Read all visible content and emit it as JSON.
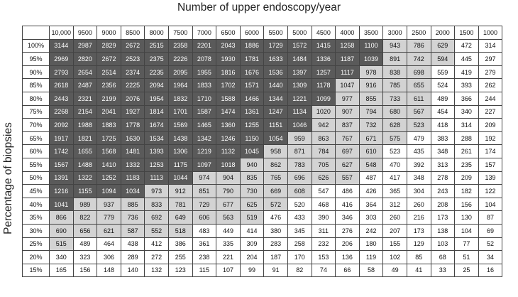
{
  "header": {
    "title": "Number of upper endoscopy/year"
  },
  "side": {
    "label": "Percentage of biopsies"
  },
  "shading": {
    "dark": "#5a5a5a",
    "light": "#d3d3d3",
    "none": "#ffffff"
  },
  "columns": [
    "10,000",
    "9500",
    "9000",
    "8500",
    "8000",
    "7500",
    "7000",
    "6500",
    "6000",
    "5500",
    "5000",
    "4500",
    "4000",
    "3500",
    "3000",
    "2500",
    "2000",
    "1500",
    "1000"
  ],
  "rows": [
    {
      "label": "100%",
      "values": [
        "3144",
        "2987",
        "2829",
        "2672",
        "2515",
        "2358",
        "2201",
        "2043",
        "1886",
        "1729",
        "1572",
        "1415",
        "1258",
        "1100",
        "943",
        "786",
        "629",
        "472",
        "314"
      ],
      "dark": 14,
      "light": 17
    },
    {
      "label": "95%",
      "values": [
        "2969",
        "2820",
        "2672",
        "2523",
        "2375",
        "2226",
        "2078",
        "1930",
        "1781",
        "1633",
        "1484",
        "1336",
        "1187",
        "1039",
        "891",
        "742",
        "594",
        "445",
        "297"
      ],
      "dark": 14,
      "light": 17
    },
    {
      "label": "90%",
      "values": [
        "2793",
        "2654",
        "2514",
        "2374",
        "2235",
        "2095",
        "1955",
        "1816",
        "1676",
        "1536",
        "1397",
        "1257",
        "1117",
        "978",
        "838",
        "698",
        "559",
        "419",
        "279"
      ],
      "dark": 13,
      "light": 16
    },
    {
      "label": "85%",
      "values": [
        "2618",
        "2487",
        "2356",
        "2225",
        "2094",
        "1964",
        "1833",
        "1702",
        "1571",
        "1440",
        "1309",
        "1178",
        "1047",
        "916",
        "785",
        "655",
        "524",
        "393",
        "262"
      ],
      "dark": 12,
      "light": 16
    },
    {
      "label": "80%",
      "values": [
        "2443",
        "2321",
        "2199",
        "2076",
        "1954",
        "1832",
        "1710",
        "1588",
        "1466",
        "1344",
        "1221",
        "1099",
        "977",
        "855",
        "733",
        "611",
        "489",
        "366",
        "244"
      ],
      "dark": 12,
      "light": 16
    },
    {
      "label": "75%",
      "values": [
        "2268",
        "2154",
        "2041",
        "1927",
        "1814",
        "1701",
        "1587",
        "1474",
        "1361",
        "1247",
        "1134",
        "1020",
        "907",
        "794",
        "680",
        "567",
        "454",
        "340",
        "227"
      ],
      "dark": 11,
      "light": 16
    },
    {
      "label": "70%",
      "values": [
        "2092",
        "1988",
        "1883",
        "1778",
        "1674",
        "1569",
        "1465",
        "1360",
        "1255",
        "1151",
        "1046",
        "942",
        "837",
        "732",
        "628",
        "523",
        "418",
        "314",
        "209"
      ],
      "dark": 11,
      "light": 16
    },
    {
      "label": "65%",
      "values": [
        "1917",
        "1821",
        "1725",
        "1630",
        "1534",
        "1438",
        "1342",
        "1246",
        "1150",
        "1054",
        "959",
        "863",
        "767",
        "671",
        "575",
        "479",
        "383",
        "288",
        "192"
      ],
      "dark": 10,
      "light": 15
    },
    {
      "label": "60%",
      "values": [
        "1742",
        "1655",
        "1568",
        "1481",
        "1393",
        "1306",
        "1219",
        "1132",
        "1045",
        "958",
        "871",
        "784",
        "697",
        "610",
        "523",
        "435",
        "348",
        "261",
        "174"
      ],
      "dark": 9,
      "light": 14
    },
    {
      "label": "55%",
      "values": [
        "1567",
        "1488",
        "1410",
        "1332",
        "1253",
        "1175",
        "1097",
        "1018",
        "940",
        "862",
        "783",
        "705",
        "627",
        "548",
        "470",
        "392",
        "313",
        "235",
        "157"
      ],
      "dark": 8,
      "light": 14
    },
    {
      "label": "50%",
      "values": [
        "1391",
        "1322",
        "1252",
        "1183",
        "1113",
        "1044",
        "974",
        "904",
        "835",
        "765",
        "696",
        "626",
        "557",
        "487",
        "417",
        "348",
        "278",
        "209",
        "139"
      ],
      "dark": 6,
      "light": 13
    },
    {
      "label": "45%",
      "values": [
        "1216",
        "1155",
        "1094",
        "1034",
        "973",
        "912",
        "851",
        "790",
        "730",
        "669",
        "608",
        "547",
        "486",
        "426",
        "365",
        "304",
        "243",
        "182",
        "122"
      ],
      "dark": 4,
      "light": 11
    },
    {
      "label": "40%",
      "values": [
        "1041",
        "989",
        "937",
        "885",
        "833",
        "781",
        "729",
        "677",
        "625",
        "572",
        "520",
        "468",
        "416",
        "364",
        "312",
        "260",
        "208",
        "156",
        "104"
      ],
      "dark": 1,
      "light": 10
    },
    {
      "label": "35%",
      "values": [
        "866",
        "822",
        "779",
        "736",
        "692",
        "649",
        "606",
        "563",
        "519",
        "476",
        "433",
        "390",
        "346",
        "303",
        "260",
        "216",
        "173",
        "130",
        "87"
      ],
      "dark": 0,
      "light": 9
    },
    {
      "label": "30%",
      "values": [
        "690",
        "656",
        "621",
        "587",
        "552",
        "518",
        "483",
        "449",
        "414",
        "380",
        "345",
        "311",
        "276",
        "242",
        "207",
        "173",
        "138",
        "104",
        "69"
      ],
      "dark": 0,
      "light": 6
    },
    {
      "label": "25%",
      "values": [
        "515",
        "489",
        "464",
        "438",
        "412",
        "386",
        "361",
        "335",
        "309",
        "283",
        "258",
        "232",
        "206",
        "180",
        "155",
        "129",
        "103",
        "77",
        "52"
      ],
      "dark": 0,
      "light": 1
    },
    {
      "label": "20%",
      "values": [
        "340",
        "323",
        "306",
        "289",
        "272",
        "255",
        "238",
        "221",
        "204",
        "187",
        "170",
        "153",
        "136",
        "119",
        "102",
        "85",
        "68",
        "51",
        "34"
      ],
      "dark": 0,
      "light": 0
    },
    {
      "label": "15%",
      "values": [
        "165",
        "156",
        "148",
        "140",
        "132",
        "123",
        "115",
        "107",
        "99",
        "91",
        "82",
        "74",
        "66",
        "58",
        "49",
        "41",
        "33",
        "25",
        "16"
      ],
      "dark": 0,
      "light": 0
    }
  ]
}
